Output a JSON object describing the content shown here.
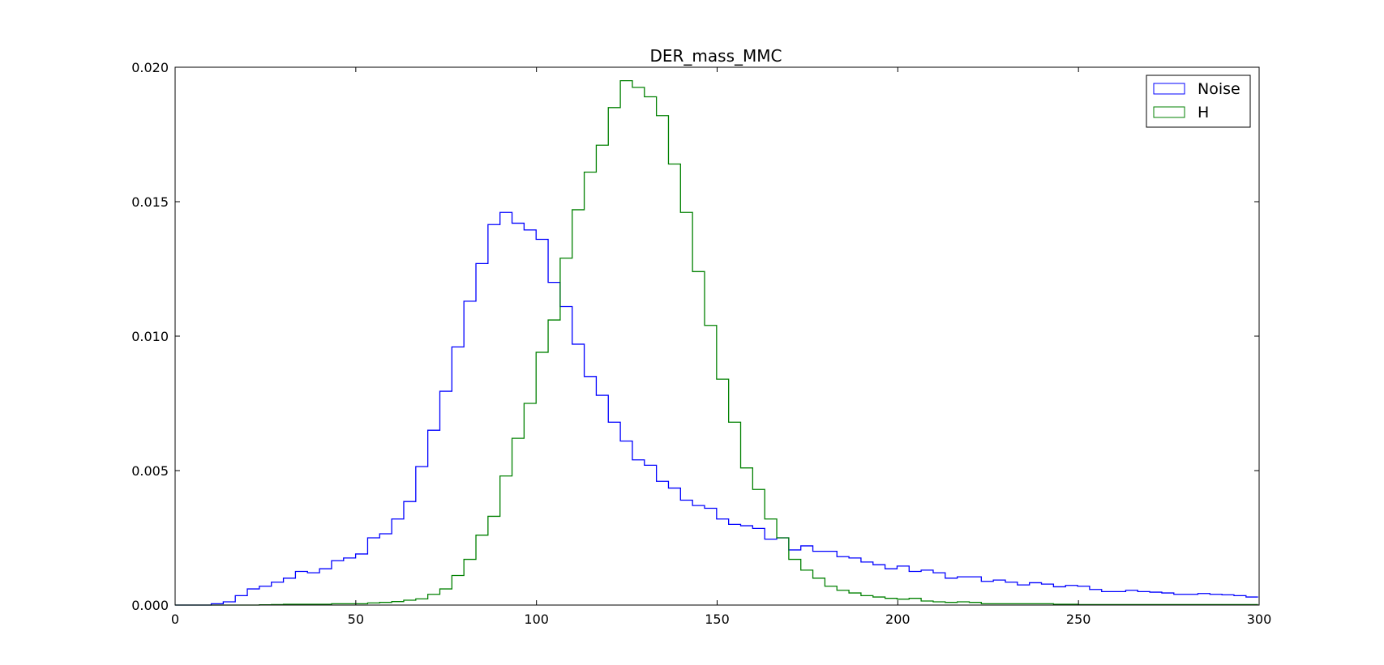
{
  "chart_data": {
    "type": "step",
    "title": "DER_mass_MMC",
    "xlabel": "",
    "ylabel": "",
    "xlim": [
      0,
      300
    ],
    "ylim": [
      0,
      0.02
    ],
    "x_ticks": [
      "0",
      "50",
      "100",
      "150",
      "200",
      "250",
      "300"
    ],
    "y_ticks": [
      "0.000",
      "0.005",
      "0.010",
      "0.015",
      "0.020"
    ],
    "grid": false,
    "legend": "top-right",
    "bin_start": 0,
    "bin_width": 3.33,
    "series": [
      {
        "name": "Noise",
        "color": "#0000ff",
        "values": [
          0.0,
          0.0,
          0.0,
          5e-05,
          0.00012,
          0.00035,
          0.0006,
          0.0007,
          0.00085,
          0.001,
          0.00125,
          0.0012,
          0.00135,
          0.00165,
          0.00175,
          0.0019,
          0.0025,
          0.00265,
          0.0032,
          0.00385,
          0.00515,
          0.0065,
          0.00795,
          0.0096,
          0.0113,
          0.0127,
          0.01415,
          0.0146,
          0.0142,
          0.01395,
          0.0136,
          0.012,
          0.0111,
          0.0097,
          0.0085,
          0.0078,
          0.0068,
          0.0061,
          0.0054,
          0.0052,
          0.0046,
          0.00435,
          0.0039,
          0.0037,
          0.0036,
          0.0032,
          0.003,
          0.00295,
          0.00285,
          0.00245,
          0.0025,
          0.00205,
          0.0022,
          0.002,
          0.002,
          0.0018,
          0.00175,
          0.0016,
          0.0015,
          0.00135,
          0.00145,
          0.00125,
          0.0013,
          0.0012,
          0.001,
          0.00105,
          0.00105,
          0.00088,
          0.00093,
          0.00085,
          0.00075,
          0.00083,
          0.00078,
          0.00068,
          0.00073,
          0.0007,
          0.00058,
          0.0005,
          0.0005,
          0.00055,
          0.0005,
          0.00048,
          0.00045,
          0.0004,
          0.0004,
          0.00043,
          0.0004,
          0.00038,
          0.00035,
          0.0003
        ]
      },
      {
        "name": "H",
        "color": "#008000",
        "values": [
          0.0,
          0.0,
          0.0,
          0.0,
          0.0,
          0.0,
          0.0,
          1e-05,
          2e-05,
          3e-05,
          3e-05,
          3e-05,
          3e-05,
          5e-05,
          5e-05,
          5e-05,
          8e-05,
          0.0001,
          0.00013,
          0.00018,
          0.00023,
          0.0004,
          0.0006,
          0.0011,
          0.0017,
          0.0026,
          0.0033,
          0.0048,
          0.0062,
          0.0075,
          0.0094,
          0.0106,
          0.0129,
          0.0147,
          0.0161,
          0.0171,
          0.0185,
          0.0195,
          0.01925,
          0.0189,
          0.0182,
          0.0164,
          0.0146,
          0.0124,
          0.0104,
          0.0084,
          0.0068,
          0.0051,
          0.0043,
          0.0032,
          0.0025,
          0.0017,
          0.0013,
          0.001,
          0.0007,
          0.00055,
          0.00045,
          0.00035,
          0.0003,
          0.00025,
          0.00022,
          0.00025,
          0.00015,
          0.00012,
          0.0001,
          0.00012,
          0.0001,
          5e-05,
          5e-05,
          5e-05,
          5e-05,
          5e-05,
          5e-05,
          3e-05,
          3e-05,
          2e-05,
          2e-05,
          2e-05,
          2e-05,
          2e-05,
          2e-05,
          2e-05,
          2e-05,
          2e-05,
          2e-05,
          2e-05,
          2e-05,
          2e-05,
          2e-05,
          2e-05
        ]
      }
    ]
  }
}
